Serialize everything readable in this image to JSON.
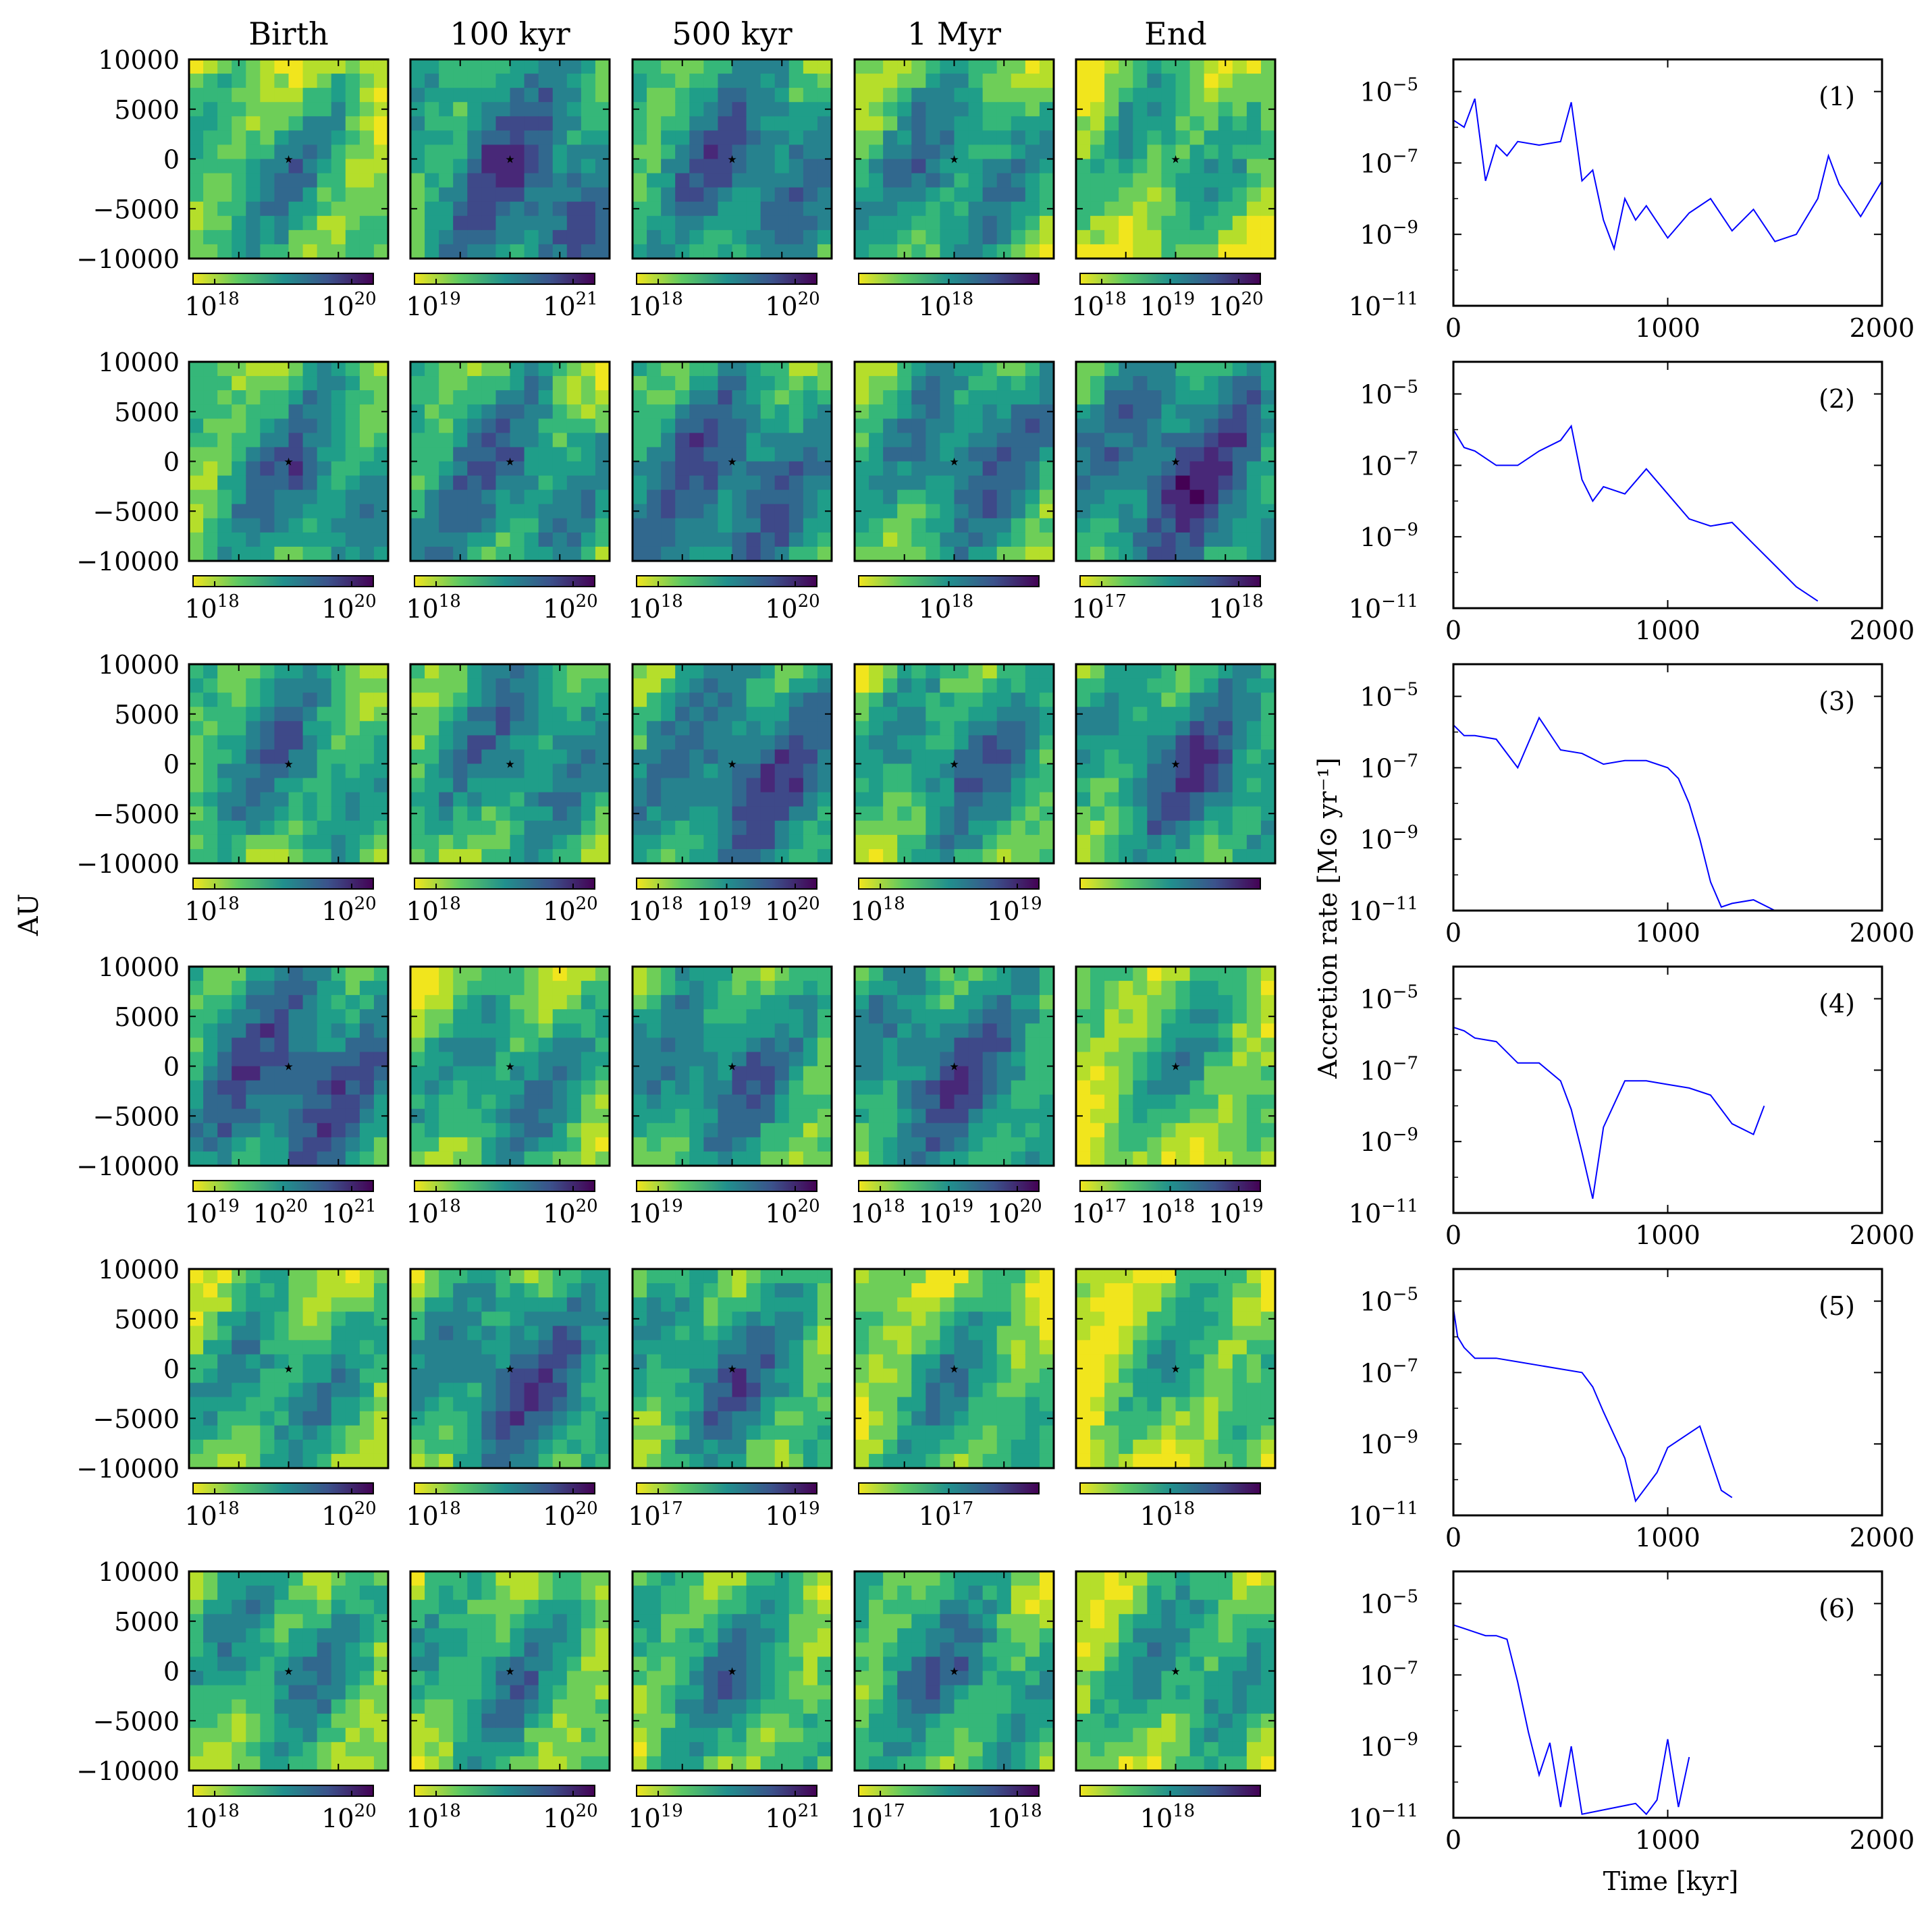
{
  "figure": {
    "column_titles": [
      "Birth",
      "100 kyr",
      "500 kyr",
      "1 Myr",
      "End"
    ],
    "map_ylabel": "AU",
    "map_yticks": [
      "10000",
      "5000",
      "0",
      "−10000",
      "−5000"
    ],
    "map_ytick_values": [
      10000,
      5000,
      0,
      -10000,
      -5000
    ],
    "colormap_low": "#f1e51d",
    "colormap_mid": "#21908d",
    "colormap_high": "#440154"
  },
  "colorbars": [
    [
      [
        "18",
        "20"
      ],
      [
        "19",
        "21"
      ],
      [
        "18",
        "20"
      ],
      [
        "18"
      ],
      [
        "18",
        "19",
        "20"
      ]
    ],
    [
      [
        "18",
        "20"
      ],
      [
        "18",
        "20"
      ],
      [
        "18",
        "20"
      ],
      [
        "18"
      ],
      [
        "17",
        "18"
      ]
    ],
    [
      [
        "18",
        "20"
      ],
      [
        "18",
        "20"
      ],
      [
        "18",
        "19",
        "20"
      ],
      [
        "18",
        "19"
      ],
      []
    ],
    [
      [
        "19",
        "20",
        "21"
      ],
      [
        "18",
        "20"
      ],
      [
        "19",
        "20"
      ],
      [
        "18",
        "19",
        "20"
      ],
      [
        "17",
        "18",
        "19"
      ]
    ],
    [
      [
        "18",
        "20"
      ],
      [
        "18",
        "20"
      ],
      [
        "17",
        "19"
      ],
      [
        "17"
      ],
      [
        "18"
      ]
    ],
    [
      [
        "18",
        "20"
      ],
      [
        "18",
        "20"
      ],
      [
        "19",
        "21"
      ],
      [
        "17",
        "18"
      ],
      [
        "18"
      ]
    ]
  ],
  "colorbar_base": "10",
  "chart_data": {
    "type": "line",
    "ylabel": "Accretion rate [M⊙ yr⁻¹]",
    "xlabel": "Time [kyr]",
    "xlim": [
      0,
      2000
    ],
    "ylim_log10": [
      -11,
      -4.1
    ],
    "xticks": [
      "0",
      "1000",
      "2000"
    ],
    "ytick_base": "10",
    "ytick_exponents": [
      "−5",
      "−7",
      "−9",
      "−11"
    ],
    "ytick_values": [
      -5,
      -7,
      -9,
      -11
    ],
    "line_color": "#0000ff",
    "panels": [
      {
        "label": "(1)",
        "x": [
          0,
          50,
          100,
          150,
          200,
          250,
          300,
          400,
          500,
          550,
          600,
          650,
          700,
          750,
          800,
          850,
          900,
          1000,
          1100,
          1200,
          1300,
          1400,
          1500,
          1600,
          1700,
          1750,
          1800,
          1900,
          2000
        ],
        "y": [
          -5.8,
          -6.0,
          -5.2,
          -7.5,
          -6.5,
          -6.8,
          -6.4,
          -6.5,
          -6.4,
          -5.3,
          -7.5,
          -7.2,
          -8.6,
          -9.4,
          -8.0,
          -8.6,
          -8.2,
          -9.1,
          -8.4,
          -8.0,
          -8.9,
          -8.3,
          -9.2,
          -9.0,
          -8.0,
          -6.8,
          -7.6,
          -8.5,
          -7.5
        ]
      },
      {
        "label": "(2)",
        "x": [
          0,
          50,
          100,
          200,
          300,
          400,
          500,
          550,
          600,
          650,
          700,
          800,
          900,
          1000,
          1100,
          1200,
          1300,
          1400,
          1500,
          1600,
          1700
        ],
        "y": [
          -6.0,
          -6.5,
          -6.6,
          -7.0,
          -7.0,
          -6.6,
          -6.3,
          -5.9,
          -7.4,
          -8.0,
          -7.6,
          -7.8,
          -7.1,
          -7.8,
          -8.5,
          -8.7,
          -8.6,
          -9.2,
          -9.8,
          -10.4,
          -10.8
        ]
      },
      {
        "label": "(3)",
        "x": [
          0,
          50,
          100,
          200,
          300,
          400,
          500,
          600,
          700,
          800,
          900,
          1000,
          1050,
          1100,
          1150,
          1200,
          1250,
          1300,
          1400,
          1500
        ],
        "y": [
          -5.8,
          -6.1,
          -6.1,
          -6.2,
          -7.0,
          -5.6,
          -6.5,
          -6.6,
          -6.9,
          -6.8,
          -6.8,
          -7.0,
          -7.3,
          -8.0,
          -9.0,
          -10.2,
          -10.9,
          -10.8,
          -10.7,
          -11.0
        ]
      },
      {
        "label": "(4)",
        "x": [
          0,
          50,
          100,
          200,
          300,
          400,
          500,
          550,
          600,
          650,
          700,
          800,
          900,
          1000,
          1100,
          1200,
          1300,
          1400,
          1450
        ],
        "y": [
          -5.8,
          -5.9,
          -6.1,
          -6.2,
          -6.8,
          -6.8,
          -7.3,
          -8.1,
          -9.3,
          -10.6,
          -8.6,
          -7.3,
          -7.3,
          -7.4,
          -7.5,
          -7.7,
          -8.5,
          -8.8,
          -8.0
        ]
      },
      {
        "label": "(5)",
        "x": [
          0,
          20,
          50,
          100,
          200,
          300,
          400,
          500,
          600,
          650,
          700,
          800,
          850,
          900,
          950,
          1000,
          1100,
          1150,
          1200,
          1250,
          1300
        ],
        "y": [
          -5.2,
          -6.0,
          -6.3,
          -6.6,
          -6.6,
          -6.7,
          -6.8,
          -6.9,
          -7.0,
          -7.4,
          -8.1,
          -9.4,
          -10.6,
          -10.2,
          -9.8,
          -9.1,
          -8.7,
          -8.5,
          -9.4,
          -10.3,
          -10.5
        ]
      },
      {
        "label": "(6)",
        "x": [
          0,
          50,
          100,
          150,
          200,
          250,
          300,
          350,
          400,
          450,
          500,
          550,
          600,
          850,
          900,
          950,
          1000,
          1050,
          1100
        ],
        "y": [
          -5.6,
          -5.7,
          -5.8,
          -5.9,
          -5.9,
          -6.0,
          -7.2,
          -8.6,
          -9.8,
          -8.9,
          -10.7,
          -9.0,
          -10.9,
          -10.6,
          -10.9,
          -10.5,
          -8.8,
          -10.7,
          -9.3
        ]
      }
    ]
  }
}
